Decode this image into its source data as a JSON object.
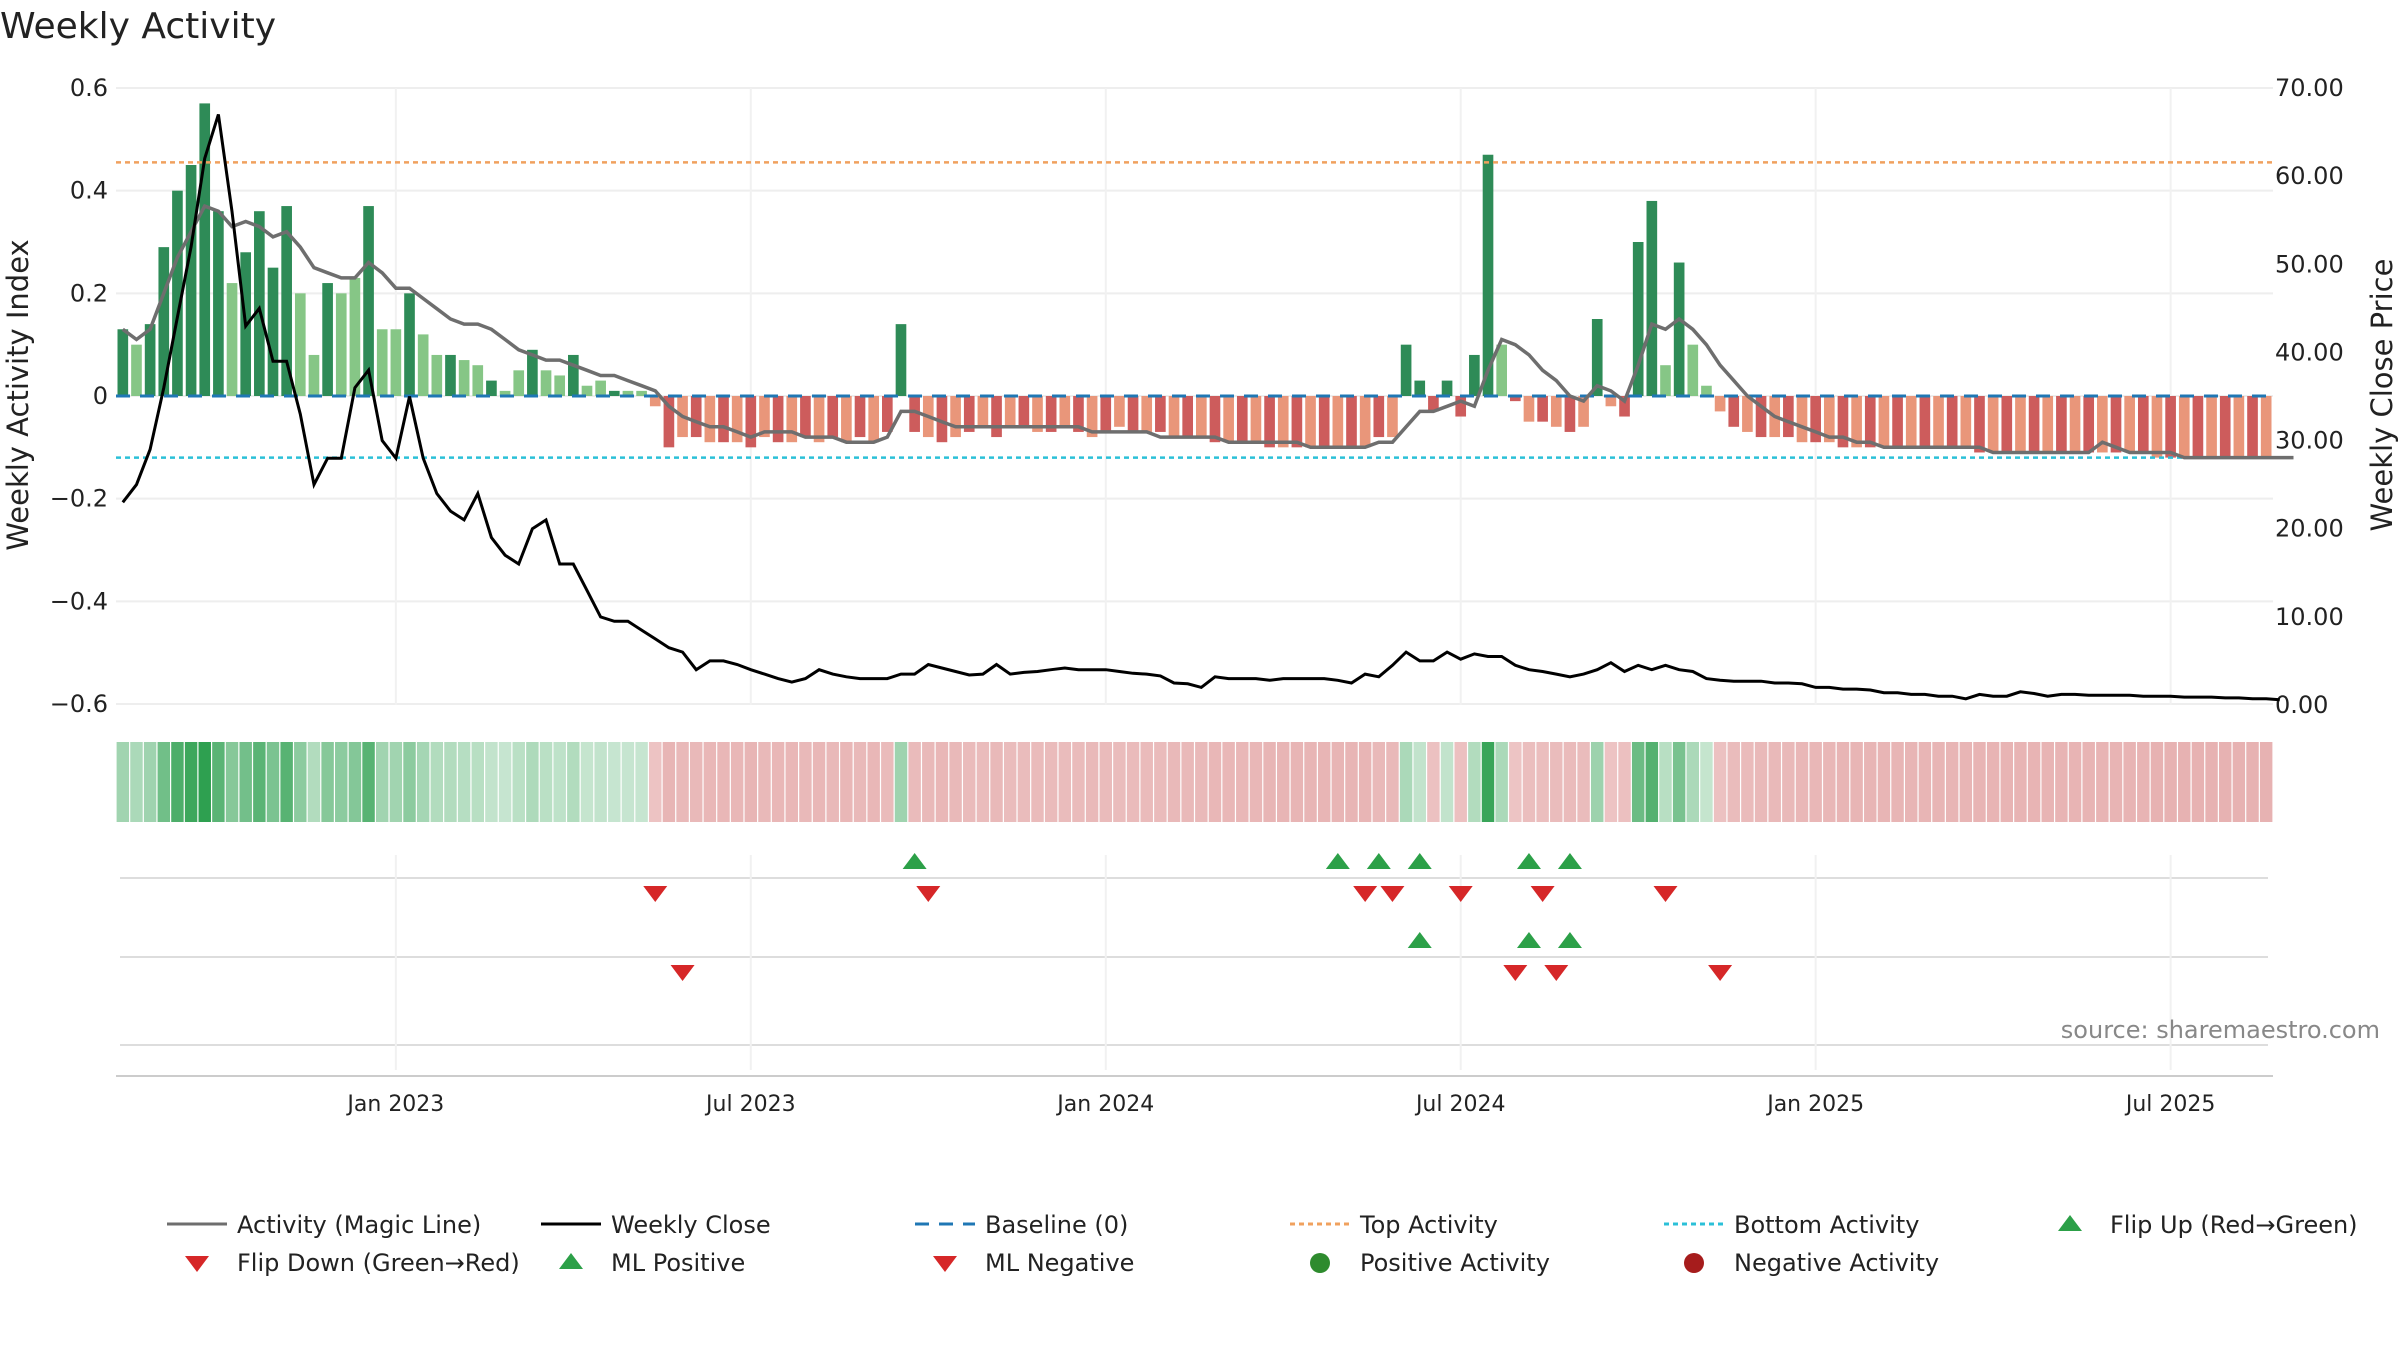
{
  "chart_data": {
    "type": "bar",
    "title": "Weekly Activity",
    "source_text": "source: sharemaestro.com",
    "left_axis": {
      "label": "Weekly Activity Index",
      "range": [
        -0.6,
        0.6
      ],
      "ticks": [
        0.6,
        0.4,
        0.2,
        0,
        -0.2,
        -0.4,
        -0.6
      ],
      "tick_labels": [
        "0.6",
        "0.4",
        "0.2",
        "0",
        "−0.2",
        "−0.4",
        "−0.6"
      ]
    },
    "right_axis": {
      "label": "Weekly Close Price",
      "range": [
        0,
        70
      ],
      "ticks": [
        70,
        60,
        50,
        40,
        30,
        20,
        10,
        0
      ],
      "tick_labels": [
        "70.00",
        "60.00",
        "50.00",
        "40.00",
        "30.00",
        "20.00",
        "10.00",
        "0.00"
      ]
    },
    "x_ticks": [
      {
        "week": 20,
        "label": "Jan 2023"
      },
      {
        "week": 46,
        "label": "Jul 2023"
      },
      {
        "week": 72,
        "label": "Jan 2024"
      },
      {
        "week": 98,
        "label": "Jul 2024"
      },
      {
        "week": 124,
        "label": "Jan 2025"
      },
      {
        "week": 150,
        "label": "Jul 2025"
      }
    ],
    "reference_lines": {
      "baseline": 0,
      "top_activity": 0.455,
      "bottom_activity": -0.12
    },
    "activity": [
      0.13,
      0.1,
      0.14,
      0.29,
      0.4,
      0.45,
      0.57,
      0.36,
      0.22,
      0.28,
      0.36,
      0.25,
      0.37,
      0.2,
      0.08,
      0.22,
      0.2,
      0.23,
      0.37,
      0.13,
      0.13,
      0.2,
      0.12,
      0.08,
      0.08,
      0.07,
      0.06,
      0.03,
      0.01,
      0.05,
      0.09,
      0.05,
      0.04,
      0.08,
      0.02,
      0.03,
      0.01,
      0.01,
      0.01,
      -0.02,
      -0.1,
      -0.08,
      -0.08,
      -0.09,
      -0.09,
      -0.09,
      -0.1,
      -0.08,
      -0.09,
      -0.09,
      -0.08,
      -0.09,
      -0.08,
      -0.09,
      -0.08,
      -0.09,
      -0.07,
      0.14,
      -0.07,
      -0.08,
      -0.09,
      -0.08,
      -0.07,
      -0.06,
      -0.08,
      -0.06,
      -0.06,
      -0.07,
      -0.07,
      -0.06,
      -0.07,
      -0.08,
      -0.07,
      -0.06,
      -0.07,
      -0.07,
      -0.07,
      -0.08,
      -0.08,
      -0.08,
      -0.09,
      -0.09,
      -0.09,
      -0.09,
      -0.1,
      -0.1,
      -0.1,
      -0.1,
      -0.1,
      -0.1,
      -0.1,
      -0.1,
      -0.08,
      -0.08,
      0.1,
      0.03,
      -0.03,
      0.03,
      -0.04,
      0.08,
      0.47,
      0.1,
      -0.01,
      -0.05,
      -0.05,
      -0.06,
      -0.07,
      -0.06,
      0.15,
      -0.02,
      -0.04,
      0.3,
      0.38,
      0.06,
      0.26,
      0.1,
      0.02,
      -0.03,
      -0.06,
      -0.07,
      -0.08,
      -0.08,
      -0.08,
      -0.09,
      -0.09,
      -0.09,
      -0.1,
      -0.1,
      -0.1,
      -0.1,
      -0.1,
      -0.1,
      -0.1,
      -0.1,
      -0.1,
      -0.1,
      -0.11,
      -0.11,
      -0.11,
      -0.11,
      -0.11,
      -0.11,
      -0.11,
      -0.11,
      -0.11,
      -0.11,
      -0.11,
      -0.11,
      -0.11,
      -0.12,
      -0.12,
      -0.12,
      -0.12,
      -0.12,
      -0.12,
      -0.12,
      -0.12,
      -0.12
    ],
    "magic_line": [
      0.13,
      0.11,
      0.13,
      0.2,
      0.27,
      0.32,
      0.37,
      0.36,
      0.33,
      0.34,
      0.33,
      0.31,
      0.32,
      0.29,
      0.25,
      0.24,
      0.23,
      0.23,
      0.26,
      0.24,
      0.21,
      0.21,
      0.19,
      0.17,
      0.15,
      0.14,
      0.14,
      0.13,
      0.11,
      0.09,
      0.08,
      0.07,
      0.07,
      0.06,
      0.05,
      0.04,
      0.04,
      0.03,
      0.02,
      0.01,
      -0.02,
      -0.04,
      -0.05,
      -0.06,
      -0.06,
      -0.07,
      -0.08,
      -0.07,
      -0.07,
      -0.07,
      -0.08,
      -0.08,
      -0.08,
      -0.09,
      -0.09,
      -0.09,
      -0.08,
      -0.03,
      -0.03,
      -0.04,
      -0.05,
      -0.06,
      -0.06,
      -0.06,
      -0.06,
      -0.06,
      -0.06,
      -0.06,
      -0.06,
      -0.06,
      -0.06,
      -0.07,
      -0.07,
      -0.07,
      -0.07,
      -0.07,
      -0.08,
      -0.08,
      -0.08,
      -0.08,
      -0.08,
      -0.09,
      -0.09,
      -0.09,
      -0.09,
      -0.09,
      -0.09,
      -0.1,
      -0.1,
      -0.1,
      -0.1,
      -0.1,
      -0.09,
      -0.09,
      -0.06,
      -0.03,
      -0.03,
      -0.02,
      -0.01,
      -0.02,
      0.05,
      0.11,
      0.1,
      0.08,
      0.05,
      0.03,
      0.0,
      -0.01,
      0.02,
      0.01,
      -0.01,
      0.06,
      0.14,
      0.13,
      0.15,
      0.13,
      0.1,
      0.06,
      0.03,
      0.0,
      -0.02,
      -0.04,
      -0.05,
      -0.06,
      -0.07,
      -0.08,
      -0.08,
      -0.09,
      -0.09,
      -0.1,
      -0.1,
      -0.1,
      -0.1,
      -0.1,
      -0.1,
      -0.1,
      -0.1,
      -0.11,
      -0.11,
      -0.11,
      -0.11,
      -0.11,
      -0.11,
      -0.11,
      -0.11,
      -0.09,
      -0.1,
      -0.11,
      -0.11,
      -0.11,
      -0.11,
      -0.12,
      -0.12,
      -0.12,
      -0.12,
      -0.12,
      -0.12,
      -0.12,
      -0.12,
      -0.12
    ],
    "weekly_close": [
      23,
      25,
      29,
      36,
      44,
      52,
      62,
      67,
      56,
      43,
      45,
      39,
      39,
      33,
      25,
      28,
      28,
      36,
      38,
      30,
      28,
      35,
      28,
      24,
      22,
      21,
      24,
      19,
      17,
      16,
      20,
      21,
      16,
      16,
      13,
      10,
      9.5,
      9.5,
      8.5,
      7.5,
      6.5,
      6,
      4,
      5,
      5,
      4.6,
      4,
      3.5,
      3,
      2.6,
      3,
      4,
      3.5,
      3.2,
      3,
      3,
      3,
      3.5,
      3.5,
      4.6,
      4.2,
      3.8,
      3.4,
      3.5,
      4.6,
      3.5,
      3.7,
      3.8,
      4,
      4.2,
      4,
      4,
      4,
      3.8,
      3.6,
      3.5,
      3.3,
      2.5,
      2.4,
      2,
      3.2,
      3,
      3,
      3,
      2.8,
      3,
      3,
      3,
      3,
      2.8,
      2.5,
      3.5,
      3.2,
      4.5,
      6,
      5,
      5,
      6,
      5.2,
      5.8,
      5.5,
      5.5,
      4.5,
      4,
      3.8,
      3.5,
      3.2,
      3.5,
      4,
      4.8,
      3.8,
      4.5,
      4,
      4.5,
      4,
      3.8,
      3,
      2.8,
      2.7,
      2.7,
      2.7,
      2.5,
      2.5,
      2.4,
      2,
      2,
      1.8,
      1.8,
      1.7,
      1.4,
      1.4,
      1.2,
      1.2,
      1,
      1,
      0.7,
      1.2,
      1,
      1,
      1.5,
      1.3,
      1,
      1.2,
      1.2,
      1.1,
      1.1,
      1.1,
      1.1,
      1,
      1,
      1,
      0.9,
      0.9,
      0.9,
      0.8,
      0.8,
      0.7,
      0.7,
      0.6
    ],
    "flip_up_weeks": [
      58,
      89,
      92,
      95,
      103,
      106
    ],
    "flip_down_weeks": [
      39,
      59,
      91,
      93,
      98,
      104,
      113
    ],
    "ml_positive_weeks": [
      95,
      103,
      106
    ],
    "ml_negative_weeks": [
      41,
      102,
      105,
      117
    ],
    "legend": {
      "magic_line": "Activity (Magic Line)",
      "weekly_close": "Weekly Close",
      "baseline": "Baseline (0)",
      "top_activity": "Top Activity",
      "bottom_activity": "Bottom Activity",
      "flip_up": "Flip Up (Red→Green)",
      "flip_down": "Flip Down (Green→Red)",
      "ml_positive": "ML Positive",
      "ml_negative": "ML Negative",
      "positive_activity": "Positive Activity",
      "negative_activity": "Negative Activity"
    },
    "colors": {
      "pos_strong": "#2e8b57",
      "pos_weak": "#86c686",
      "neg_strong": "#cd5c5c",
      "neg_weak": "#e9967a",
      "magic_line": "#6e6e6e",
      "close_line": "#000000",
      "baseline": "#1f77b4",
      "top_line": "#f0a15e",
      "bottom_line": "#2bc0d8",
      "marker_up": "#2ca048",
      "marker_down": "#d62728",
      "dot_pos": "#2e8b2e",
      "dot_neg": "#a61c1c"
    }
  }
}
